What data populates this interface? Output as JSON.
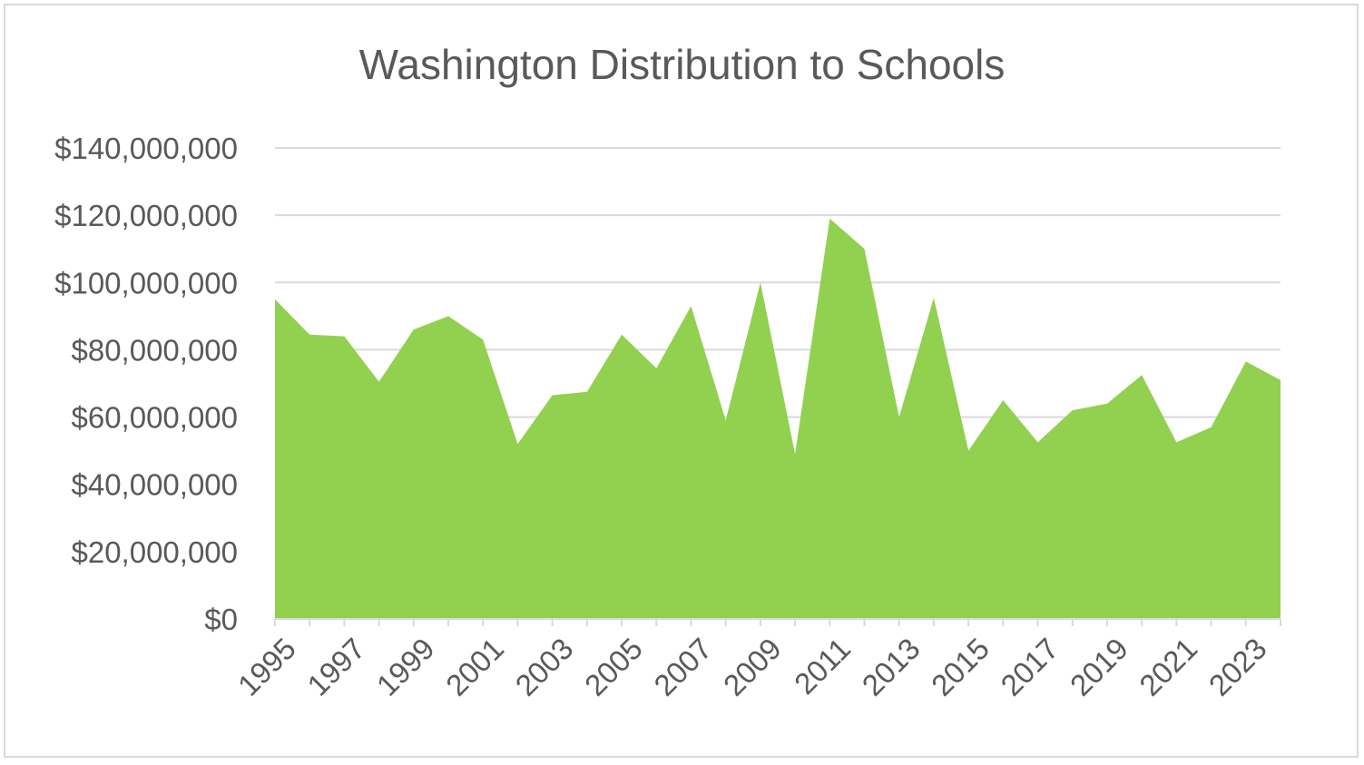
{
  "chart_data": {
    "type": "area",
    "title": "Washington Distribution to Schools",
    "xlabel": "",
    "ylabel": "",
    "ylim": [
      0,
      140000000
    ],
    "yticks": [
      "$0",
      "$20,000,000",
      "$40,000,000",
      "$60,000,000",
      "$80,000,000",
      "$100,000,000",
      "$120,000,000",
      "$140,000,000"
    ],
    "ytick_values": [
      0,
      20000000,
      40000000,
      60000000,
      80000000,
      100000000,
      120000000,
      140000000
    ],
    "x": [
      1995,
      1996,
      1997,
      1998,
      1999,
      2000,
      2001,
      2002,
      2003,
      2004,
      2005,
      2006,
      2007,
      2008,
      2009,
      2010,
      2011,
      2012,
      2013,
      2014,
      2015,
      2016,
      2017,
      2018,
      2019,
      2020,
      2021,
      2022,
      2023,
      2024
    ],
    "xtick_labels": [
      "1995",
      "1997",
      "1999",
      "2001",
      "2003",
      "2005",
      "2007",
      "2009",
      "2011",
      "2013",
      "2015",
      "2017",
      "2019",
      "2021",
      "2023"
    ],
    "values": [
      95000000,
      84500000,
      84000000,
      70500000,
      86000000,
      90000000,
      83000000,
      52000000,
      66500000,
      67500000,
      84500000,
      74500000,
      93000000,
      59000000,
      100000000,
      49000000,
      119000000,
      110000000,
      60000000,
      95500000,
      50000000,
      65000000,
      52500000,
      62000000,
      64000000,
      72500000,
      52500000,
      57000000,
      76500000,
      71000000
    ],
    "grid": true,
    "legend": "none",
    "color": "#92d050"
  }
}
